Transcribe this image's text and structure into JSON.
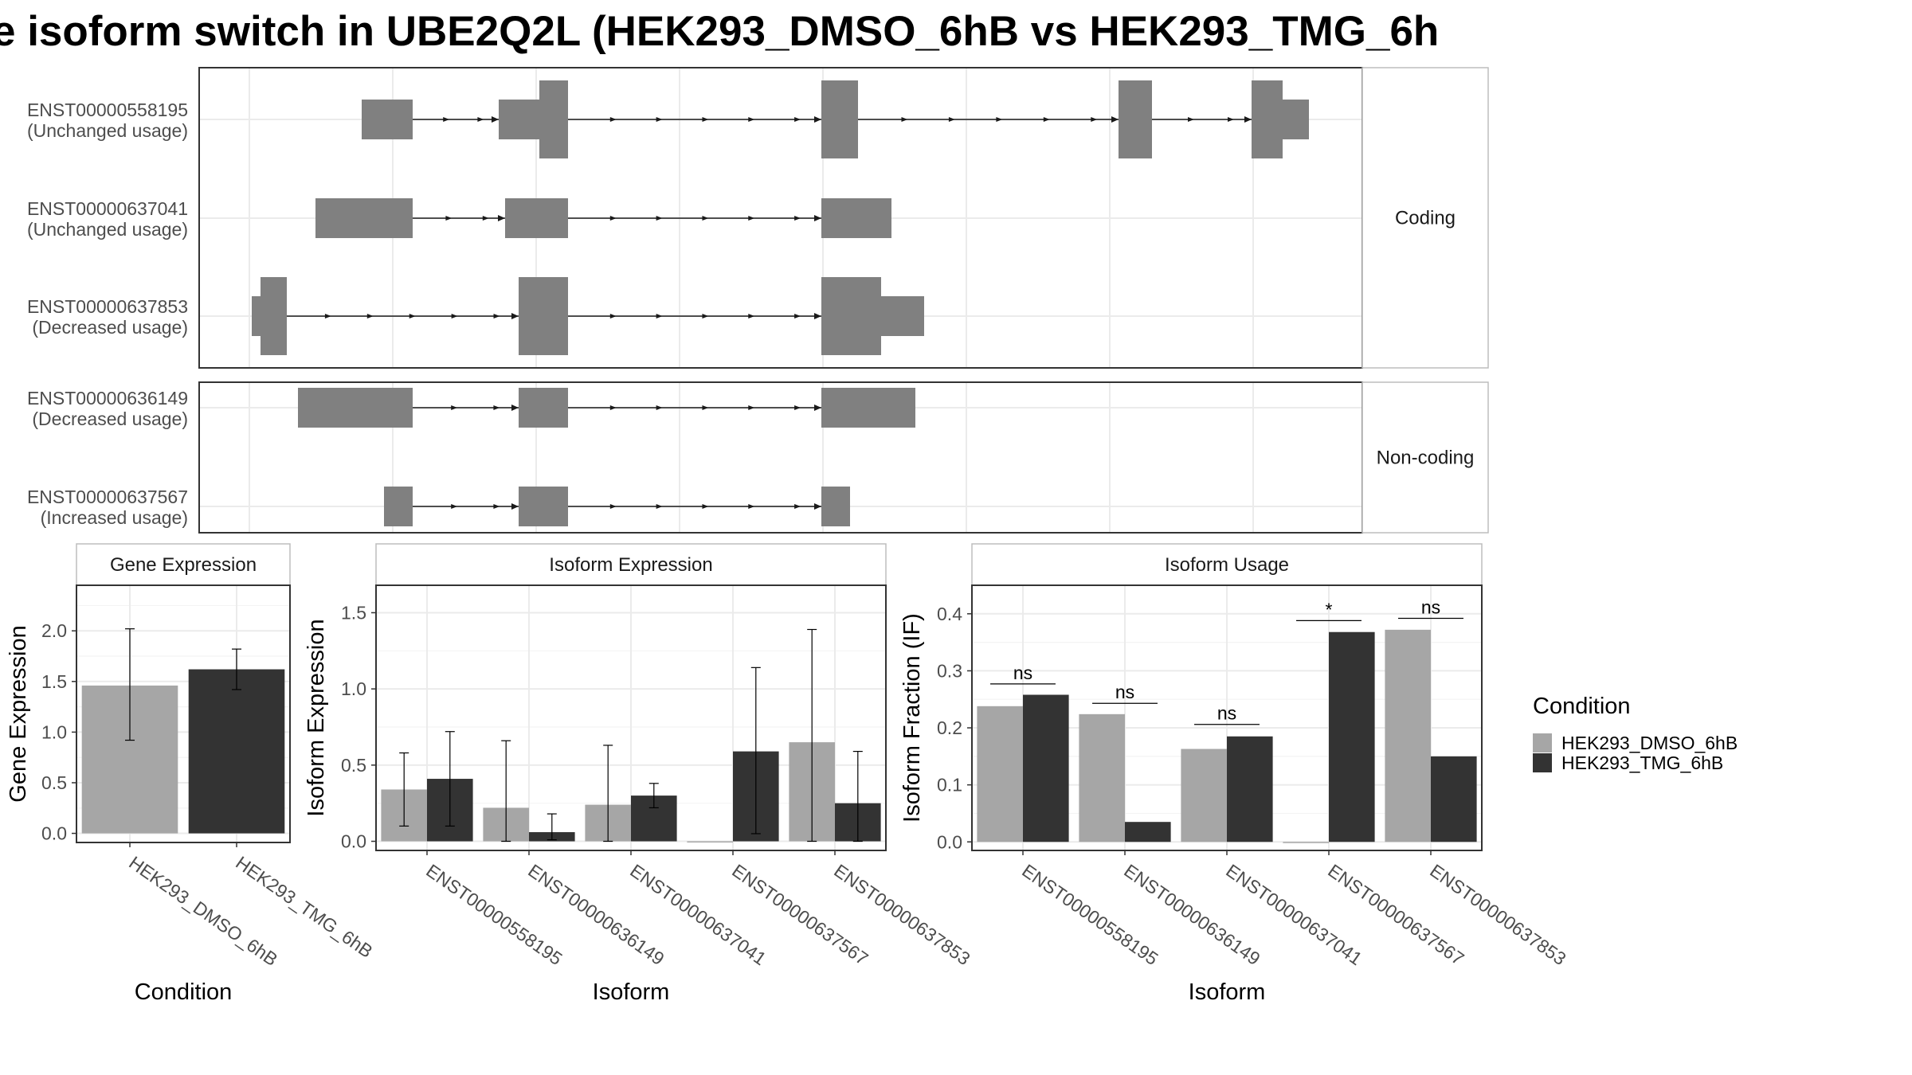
{
  "title": "e isoform switch in UBE2Q2L (HEK293_DMSO_6hB vs HEK293_TMG_6h",
  "colors": {
    "dmso": "#a6a6a6",
    "tmg": "#333333",
    "exon": "#808080",
    "grid": "#ebebeb",
    "strip_bg": "#ffffff",
    "panel_border": "#333333"
  },
  "structure": {
    "panels": [
      {
        "facet": "Coding",
        "rows": [
          {
            "id": "ENST00000558195",
            "usage": "(Unchanged usage)"
          },
          {
            "id": "ENST00000637041",
            "usage": "(Unchanged usage)"
          },
          {
            "id": "ENST00000637853",
            "usage": "(Decreased usage)"
          }
        ]
      },
      {
        "facet": "Non-coding",
        "rows": [
          {
            "id": "ENST00000636149",
            "usage": "(Decreased usage)"
          },
          {
            "id": "ENST00000637567",
            "usage": "(Increased usage)"
          }
        ]
      }
    ]
  },
  "chart_data": [
    {
      "type": "bar",
      "strip": "Gene Expression",
      "categories": [
        "HEK293_DMSO_6hB",
        "HEK293_TMG_6hB"
      ],
      "values": [
        1.46,
        1.62
      ],
      "errors": [
        [
          0.92,
          2.02
        ],
        [
          1.42,
          1.82
        ]
      ],
      "xlabel": "Condition",
      "ylabel": "Gene Expression",
      "ylim": [
        -0.09,
        2.45
      ],
      "yticks": [
        0.0,
        0.5,
        1.0,
        1.5,
        2.0
      ],
      "ytick_labels": [
        "0.0",
        "0.5",
        "1.0",
        "1.5",
        "2.0"
      ]
    },
    {
      "type": "bar",
      "strip": "Isoform Expression",
      "categories": [
        "ENST00000558195",
        "ENST00000636149",
        "ENST00000637041",
        "ENST00000637567",
        "ENST00000637853"
      ],
      "series": [
        {
          "name": "HEK293_DMSO_6hB",
          "values": [
            0.34,
            0.22,
            0.24,
            0.0,
            0.65
          ],
          "errors": [
            [
              0.1,
              0.58
            ],
            [
              0.0,
              0.66
            ],
            [
              0.0,
              0.63
            ],
            [
              0.0,
              0.0
            ],
            [
              0.0,
              1.39
            ]
          ]
        },
        {
          "name": "HEK293_TMG_6hB",
          "values": [
            0.41,
            0.06,
            0.3,
            0.59,
            0.25
          ],
          "errors": [
            [
              0.1,
              0.72
            ],
            [
              0.01,
              0.18
            ],
            [
              0.22,
              0.38
            ],
            [
              0.05,
              1.14
            ],
            [
              0.0,
              0.59
            ]
          ]
        }
      ],
      "xlabel": "Isoform",
      "ylabel": "Isoform Expression",
      "ylim": [
        -0.06,
        1.68
      ],
      "yticks": [
        0.0,
        0.5,
        1.0,
        1.5
      ],
      "ytick_labels": [
        "0.0",
        "0.5",
        "1.0",
        "1.5"
      ]
    },
    {
      "type": "bar",
      "strip": "Isoform Usage",
      "categories": [
        "ENST00000558195",
        "ENST00000636149",
        "ENST00000637041",
        "ENST00000637567",
        "ENST00000637853"
      ],
      "series": [
        {
          "name": "HEK293_DMSO_6hB",
          "values": [
            0.238,
            0.224,
            0.163,
            0.0,
            0.372
          ]
        },
        {
          "name": "HEK293_TMG_6hB",
          "values": [
            0.258,
            0.035,
            0.185,
            0.368,
            0.15
          ]
        }
      ],
      "significance": [
        "ns",
        "ns",
        "ns",
        "*",
        "ns"
      ],
      "significance_y": [
        0.277,
        0.243,
        0.206,
        0.388,
        0.392
      ],
      "xlabel": "Isoform",
      "ylabel": "Isoform Fraction (IF)",
      "ylim": [
        -0.015,
        0.45
      ],
      "yticks": [
        0.0,
        0.1,
        0.2,
        0.3,
        0.4
      ],
      "ytick_labels": [
        "0.0",
        "0.1",
        "0.2",
        "0.3",
        "0.4"
      ]
    }
  ],
  "legend": {
    "title": "Condition",
    "items": [
      {
        "label": "HEK293_DMSO_6hB",
        "color": "#a6a6a6"
      },
      {
        "label": "HEK293_TMG_6hB",
        "color": "#333333"
      }
    ]
  }
}
